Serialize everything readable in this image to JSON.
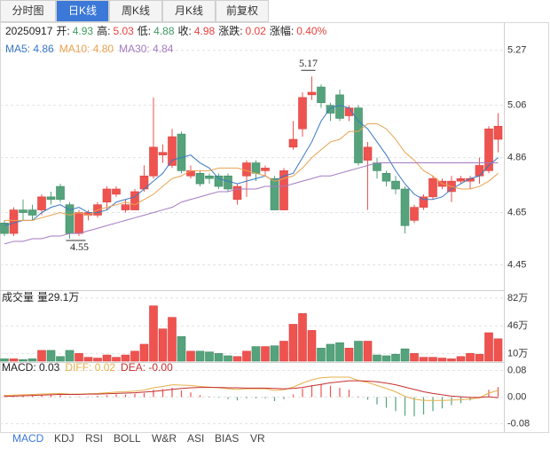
{
  "tabs": [
    "分时图",
    "日K线",
    "周K线",
    "月K线",
    "前复权"
  ],
  "active_tab": 1,
  "info": {
    "date": "20250917",
    "items": [
      {
        "label": "开:",
        "value": 4.93,
        "color": "#3d9a5e"
      },
      {
        "label": "高:",
        "value": 5.03,
        "color": "#e8413d"
      },
      {
        "label": "低:",
        "value": 4.88,
        "color": "#3d9a5e"
      },
      {
        "label": "收:",
        "value": 4.98,
        "color": "#e8413d"
      },
      {
        "label": "涨跌:",
        "value": 0.02,
        "color": "#e8413d"
      },
      {
        "label": "涨幅:",
        "value": 0.4,
        "value_label": "0.40%",
        "color": "#e8413d"
      }
    ]
  },
  "chart_data": [
    {
      "type": "candlestick",
      "up_color": "#ef5350",
      "down_color": "#55a37c",
      "high_label": 5.17,
      "low_label": 4.55,
      "ylim": [
        4.36,
        5.31
      ],
      "yticks": [
        4.45,
        4.65,
        4.86,
        5.06,
        5.27
      ],
      "grid": true,
      "open": [
        4.61,
        4.57,
        4.66,
        4.66,
        4.66,
        4.71,
        4.75,
        4.68,
        4.57,
        4.64,
        4.64,
        4.69,
        4.72,
        4.66,
        4.66,
        4.74,
        4.79,
        4.87,
        4.83,
        4.95,
        4.79,
        4.8,
        4.79,
        4.79,
        4.79,
        4.7,
        4.79,
        4.84,
        4.81,
        4.78,
        4.66,
        4.9,
        4.97,
        5.1,
        5.13,
        5.06,
        5.1,
        5.02,
        5.05,
        4.85,
        4.84,
        4.8,
        4.77,
        4.74,
        4.62,
        4.67,
        4.71,
        4.75,
        4.73,
        4.77,
        4.77,
        4.79,
        4.81,
        4.93
      ],
      "high": [
        4.62,
        4.67,
        4.7,
        4.68,
        4.72,
        4.73,
        4.76,
        4.69,
        4.66,
        4.66,
        4.69,
        4.75,
        4.75,
        4.7,
        4.74,
        4.83,
        5.09,
        4.91,
        4.97,
        4.96,
        4.83,
        4.81,
        4.8,
        4.8,
        4.8,
        4.76,
        4.85,
        4.85,
        4.83,
        4.79,
        4.82,
        5.0,
        5.11,
        5.17,
        5.14,
        5.07,
        5.12,
        5.06,
        5.06,
        4.92,
        4.86,
        4.81,
        4.79,
        4.75,
        4.68,
        4.72,
        4.79,
        4.78,
        4.79,
        4.79,
        4.79,
        4.86,
        4.98,
        5.03
      ],
      "low": [
        4.56,
        4.56,
        4.62,
        4.62,
        4.64,
        4.68,
        4.69,
        4.55,
        4.56,
        4.62,
        4.63,
        4.66,
        4.71,
        4.65,
        4.66,
        4.73,
        4.78,
        4.84,
        4.82,
        4.8,
        4.78,
        4.75,
        4.76,
        4.74,
        4.73,
        4.68,
        4.71,
        4.77,
        4.79,
        4.66,
        4.66,
        4.89,
        4.94,
        5.08,
        5.05,
        5.0,
        5.0,
        5.0,
        4.83,
        4.66,
        4.78,
        4.75,
        4.72,
        4.57,
        4.61,
        4.66,
        4.7,
        4.74,
        4.69,
        4.76,
        4.74,
        4.76,
        4.8,
        4.88
      ],
      "close": [
        4.57,
        4.66,
        4.65,
        4.64,
        4.71,
        4.7,
        4.7,
        4.57,
        4.65,
        4.65,
        4.68,
        4.74,
        4.74,
        4.68,
        4.73,
        4.79,
        4.9,
        4.88,
        4.94,
        4.81,
        4.81,
        4.76,
        4.78,
        4.75,
        4.74,
        4.75,
        4.84,
        4.8,
        4.82,
        4.66,
        4.81,
        4.93,
        5.09,
        5.11,
        5.07,
        5.03,
        5.01,
        5.05,
        4.84,
        4.9,
        4.81,
        4.77,
        4.74,
        4.6,
        4.67,
        4.71,
        4.78,
        4.77,
        4.77,
        4.78,
        4.78,
        4.83,
        4.97,
        4.98
      ],
      "series": [
        {
          "name": "MA5: 4.86",
          "color": "#3a78c2",
          "values": [
            4.6,
            4.61,
            4.62,
            4.62,
            4.65,
            4.67,
            4.68,
            4.66,
            4.67,
            4.65,
            4.65,
            4.66,
            4.69,
            4.7,
            4.71,
            4.74,
            4.77,
            4.8,
            4.85,
            4.86,
            4.87,
            4.84,
            4.82,
            4.78,
            4.77,
            4.76,
            4.77,
            4.78,
            4.79,
            4.77,
            4.79,
            4.8,
            4.86,
            4.92,
            5.0,
            5.05,
            5.06,
            5.05,
            5.0,
            4.97,
            4.92,
            4.87,
            4.81,
            4.76,
            4.72,
            4.7,
            4.7,
            4.71,
            4.74,
            4.76,
            4.78,
            4.79,
            4.83,
            4.86
          ]
        },
        {
          "name": "MA10: 4.80",
          "color": "#e9a24f",
          "values": [
            4.62,
            4.62,
            4.62,
            4.62,
            4.63,
            4.64,
            4.65,
            4.64,
            4.65,
            4.64,
            4.66,
            4.67,
            4.68,
            4.69,
            4.68,
            4.7,
            4.72,
            4.75,
            4.78,
            4.79,
            4.81,
            4.81,
            4.81,
            4.82,
            4.82,
            4.82,
            4.81,
            4.8,
            4.79,
            4.77,
            4.78,
            4.79,
            4.82,
            4.86,
            4.89,
            4.92,
            4.93,
            4.96,
            4.96,
            4.99,
            4.99,
            4.97,
            4.93,
            4.88,
            4.85,
            4.81,
            4.79,
            4.76,
            4.75,
            4.74,
            4.74,
            4.75,
            4.77,
            4.8
          ]
        },
        {
          "name": "MA30: 4.84",
          "color": "#a57ac0",
          "values": [
            4.53,
            4.54,
            4.54,
            4.55,
            4.55,
            4.56,
            4.56,
            4.57,
            4.57,
            4.58,
            4.59,
            4.6,
            4.61,
            4.62,
            4.63,
            4.64,
            4.65,
            4.66,
            4.67,
            4.69,
            4.7,
            4.71,
            4.72,
            4.73,
            4.73,
            4.74,
            4.74,
            4.74,
            4.75,
            4.75,
            4.75,
            4.76,
            4.77,
            4.78,
            4.79,
            4.79,
            4.8,
            4.81,
            4.82,
            4.83,
            4.84,
            4.84,
            4.84,
            4.84,
            4.84,
            4.84,
            4.84,
            4.84,
            4.84,
            4.84,
            4.84,
            4.84,
            4.84,
            4.84
          ]
        }
      ]
    },
    {
      "type": "bar",
      "title": "成交量",
      "subtitle": "量29.1万",
      "ylim": [
        0,
        89
      ],
      "yticks": [
        {
          "value": 82,
          "label": "82万"
        },
        {
          "value": 46,
          "label": "46万"
        },
        {
          "value": 10,
          "label": "10万"
        }
      ],
      "values": [
        3,
        3,
        2,
        3,
        14,
        14,
        6,
        14,
        10,
        5,
        4,
        8,
        5,
        8,
        13,
        22,
        72,
        42,
        57,
        32,
        13,
        13,
        12,
        10,
        7,
        6,
        13,
        19,
        19,
        20,
        26,
        48,
        62,
        40,
        17,
        22,
        24,
        17,
        26,
        26,
        8,
        7,
        9,
        16,
        10,
        5,
        5,
        4,
        3,
        6,
        10,
        9,
        37,
        29.1
      ]
    },
    {
      "type": "macd",
      "title": "MACD: 0.03",
      "ylim": [
        -0.1,
        0.1
      ],
      "yticks": [
        0.08,
        {
          "value": 0,
          "label": "0.00"
        },
        -0.08
      ],
      "values": [
        0.006,
        0.006,
        0.006,
        0.006,
        0.006,
        0.006,
        0.006,
        0.002,
        0.002,
        0.002,
        0.004,
        0.006,
        0.008,
        0.008,
        0.01,
        0.012,
        0.022,
        0.024,
        0.028,
        0.02,
        0.014,
        0.006,
        0.002,
        -0.002,
        -0.006,
        -0.01,
        -0.004,
        -0.004,
        -0.004,
        -0.012,
        -0.006,
        0.008,
        0.026,
        0.036,
        0.04,
        0.034,
        0.028,
        0.022,
        0.002,
        -0.008,
        -0.022,
        -0.032,
        -0.042,
        -0.056,
        -0.058,
        -0.052,
        -0.042,
        -0.034,
        -0.024,
        -0.018,
        -0.01,
        -0.002,
        0.022,
        0.03
      ],
      "series": [
        {
          "name": "DIFF: 0.02",
          "color": "#e6b04a",
          "values": [
            0.005,
            0.006,
            0.007,
            0.008,
            0.009,
            0.01,
            0.011,
            0.009,
            0.009,
            0.01,
            0.011,
            0.013,
            0.015,
            0.016,
            0.018,
            0.021,
            0.028,
            0.032,
            0.037,
            0.036,
            0.035,
            0.032,
            0.03,
            0.028,
            0.025,
            0.023,
            0.025,
            0.025,
            0.025,
            0.02,
            0.022,
            0.03,
            0.042,
            0.052,
            0.058,
            0.06,
            0.06,
            0.06,
            0.05,
            0.044,
            0.035,
            0.026,
            0.016,
            0.002,
            -0.006,
            -0.01,
            -0.01,
            -0.01,
            -0.009,
            -0.008,
            -0.006,
            -0.002,
            0.012,
            0.02
          ]
        },
        {
          "name": "DEA: -0.00",
          "color": "#c62f2f",
          "values": [
            0.002,
            0.003,
            0.004,
            0.005,
            0.006,
            0.007,
            0.008,
            0.008,
            0.008,
            0.009,
            0.009,
            0.01,
            0.011,
            0.012,
            0.013,
            0.015,
            0.017,
            0.02,
            0.023,
            0.026,
            0.028,
            0.029,
            0.029,
            0.029,
            0.028,
            0.028,
            0.027,
            0.027,
            0.027,
            0.026,
            0.025,
            0.026,
            0.029,
            0.034,
            0.038,
            0.043,
            0.046,
            0.049,
            0.049,
            0.048,
            0.046,
            0.042,
            0.037,
            0.03,
            0.023,
            0.016,
            0.011,
            0.007,
            0.003,
            0.001,
            -0.001,
            -0.001,
            0.001,
            -0.002
          ]
        }
      ]
    }
  ],
  "indicator_tabs": [
    "MACD",
    "KDJ",
    "RSI",
    "BOLL",
    "W&R",
    "ASI",
    "BIAS",
    "VR"
  ],
  "active_indicator": 0
}
